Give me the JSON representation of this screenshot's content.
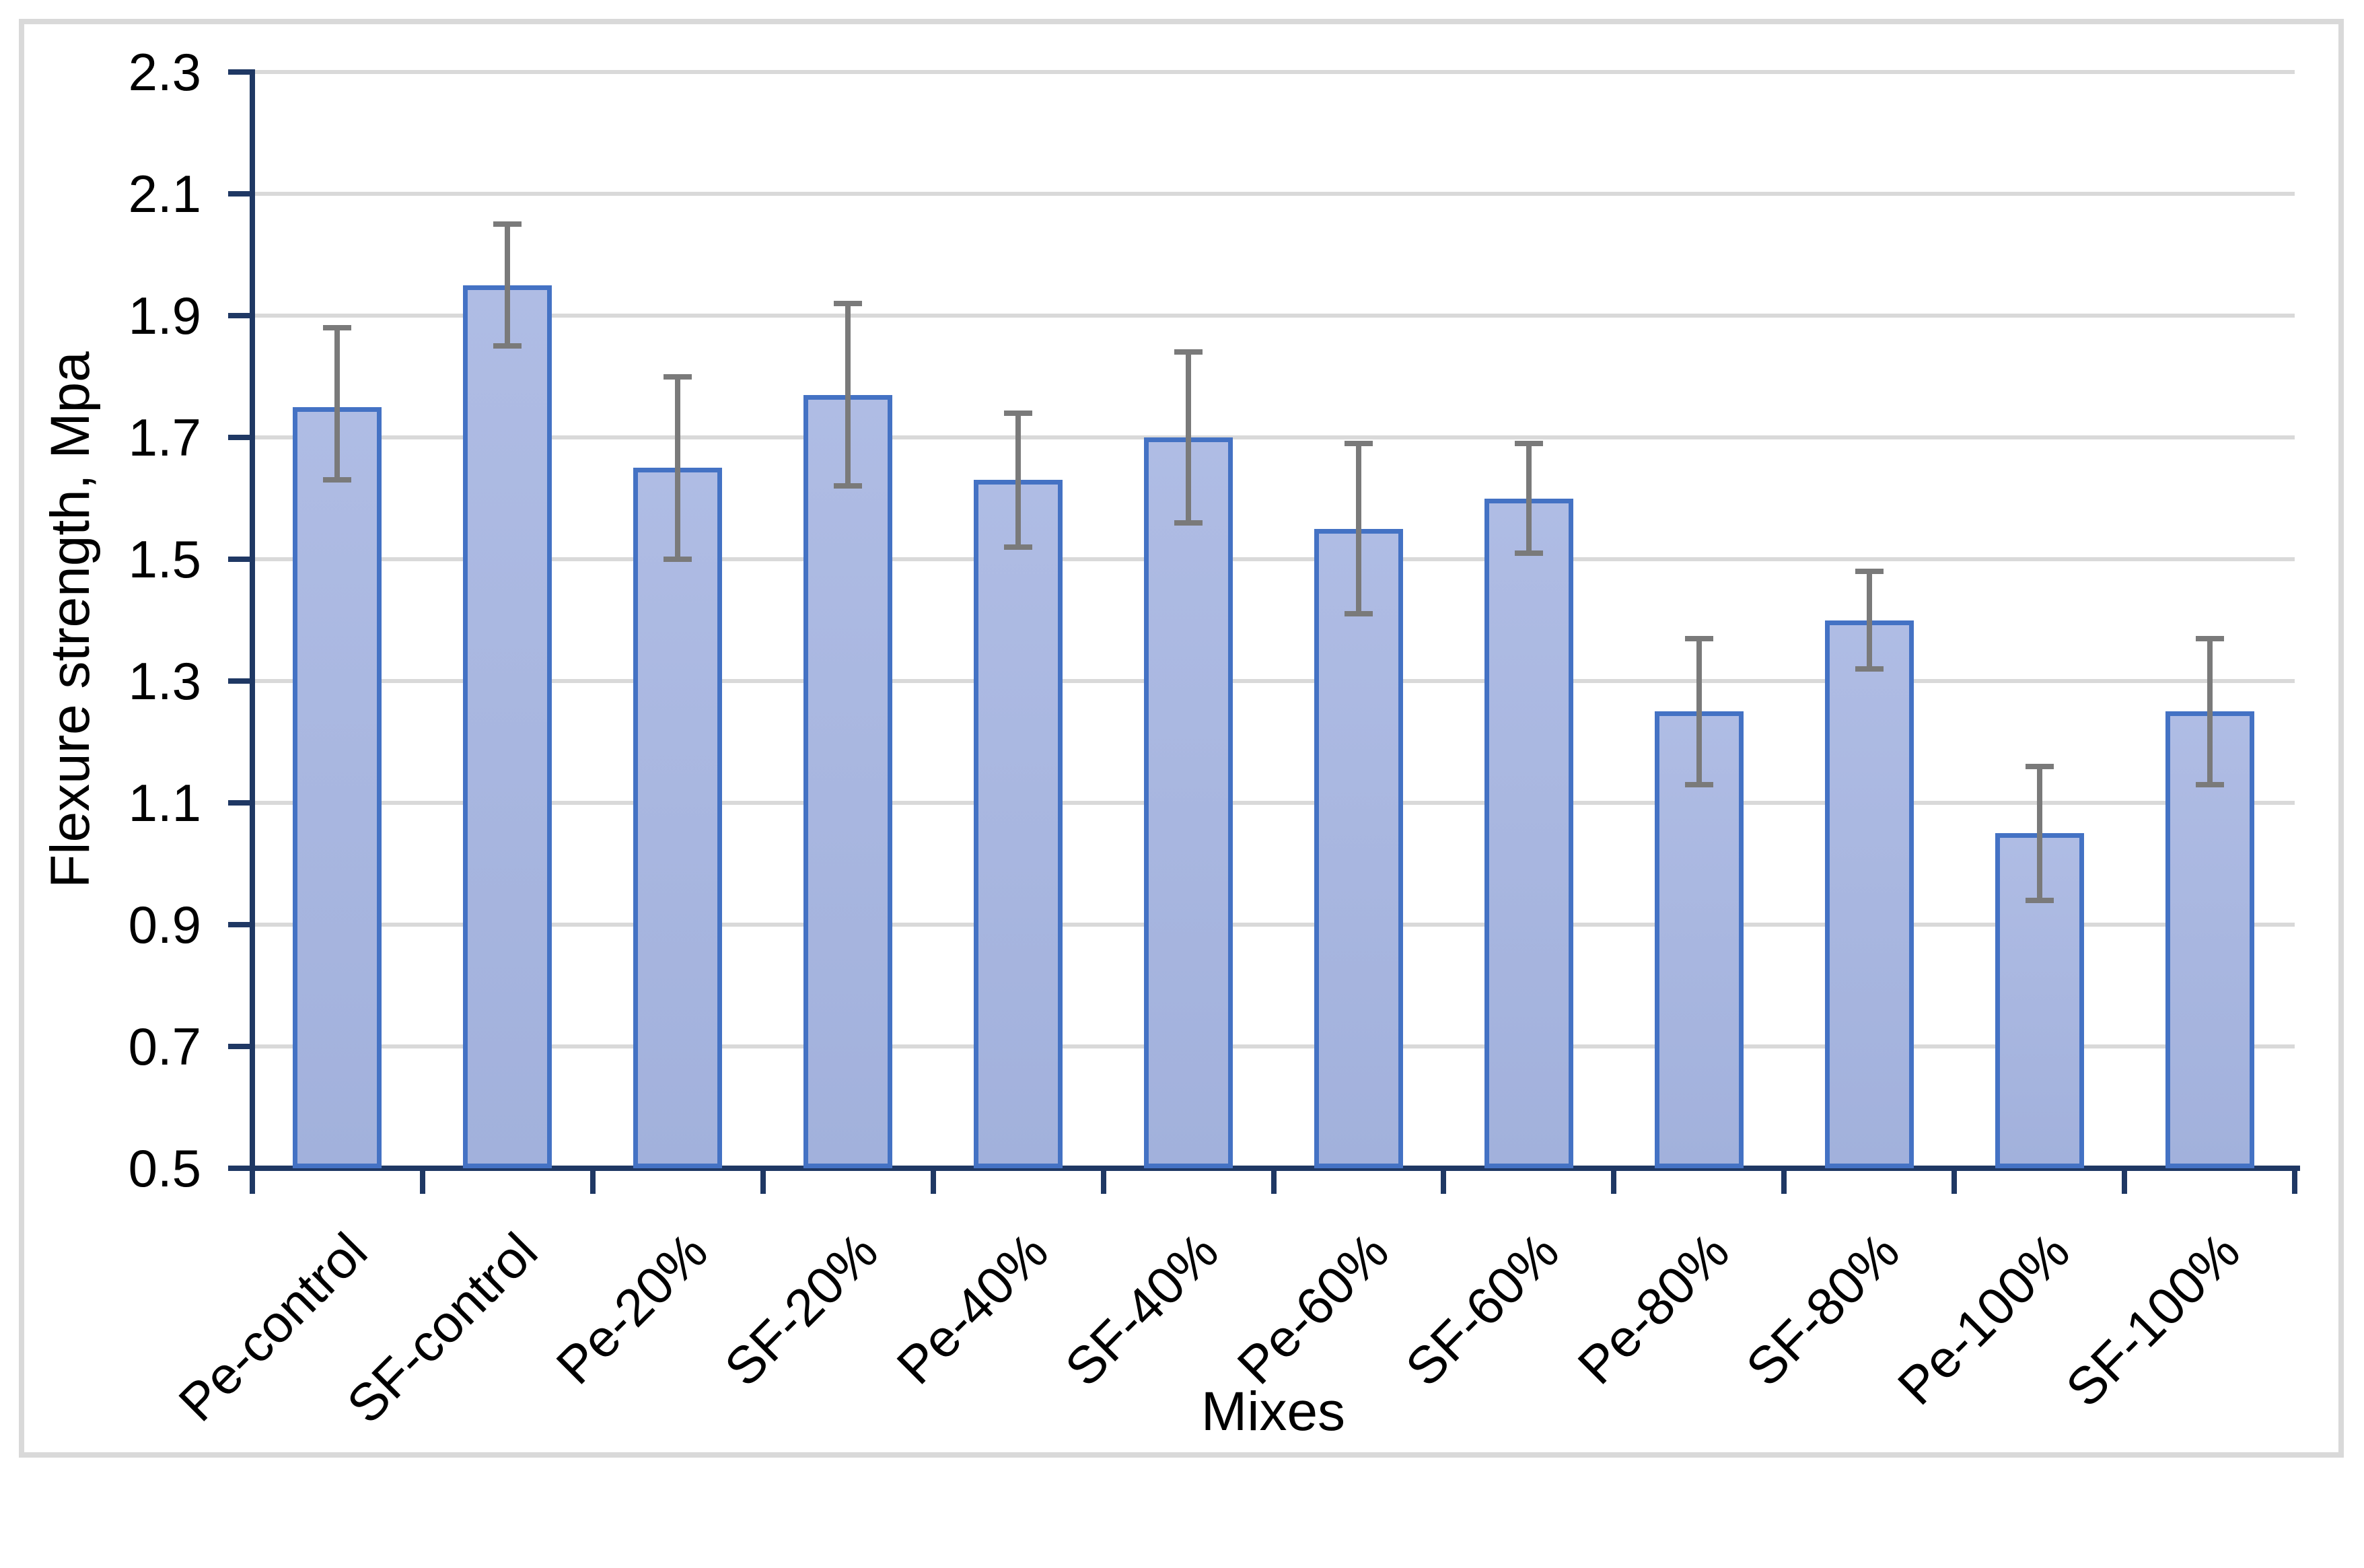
{
  "chart_data": {
    "type": "bar",
    "xlabel": "Mixes",
    "ylabel": "Flexure strength, Mpa",
    "categories": [
      "Pe-control",
      "SF-control",
      "Pe-20%",
      "SF-20%",
      "Pe-40%",
      "SF-40%",
      "Pe-60%",
      "SF-60%",
      "Pe-80%",
      "SF-80%",
      "Pe-100%",
      "SF-100%"
    ],
    "values": [
      1.75,
      1.95,
      1.65,
      1.77,
      1.63,
      1.7,
      1.55,
      1.6,
      1.25,
      1.4,
      1.05,
      1.25
    ],
    "error_low": [
      1.63,
      1.85,
      1.5,
      1.62,
      1.52,
      1.56,
      1.41,
      1.51,
      1.13,
      1.32,
      0.94,
      1.13
    ],
    "error_high": [
      1.88,
      2.05,
      1.8,
      1.92,
      1.74,
      1.84,
      1.69,
      1.69,
      1.37,
      1.48,
      1.16,
      1.37
    ],
    "ylim": [
      0.5,
      2.3
    ],
    "yticks": [
      2.3,
      2.1,
      1.9,
      1.7,
      1.5,
      1.3,
      1.1,
      0.9,
      0.7,
      0.5
    ],
    "ytick_labels": [
      "2.3",
      "2.1",
      "1.9",
      "1.7",
      "1.5",
      "1.3",
      "1.1",
      "0.9",
      "0.7",
      "0.5"
    ],
    "grid": true,
    "legend": false,
    "bar_fill_top": "#afbce4",
    "bar_fill_bottom": "#a2b1dc",
    "bar_border_color": "#4472c4",
    "error_bar_color": "#7a7a7a",
    "gridline_color": "#d9d9d9",
    "axis_color": "#1f3864",
    "frame_color": "#d9d9d9",
    "text_color": "#000000",
    "background": "#ffffff"
  }
}
